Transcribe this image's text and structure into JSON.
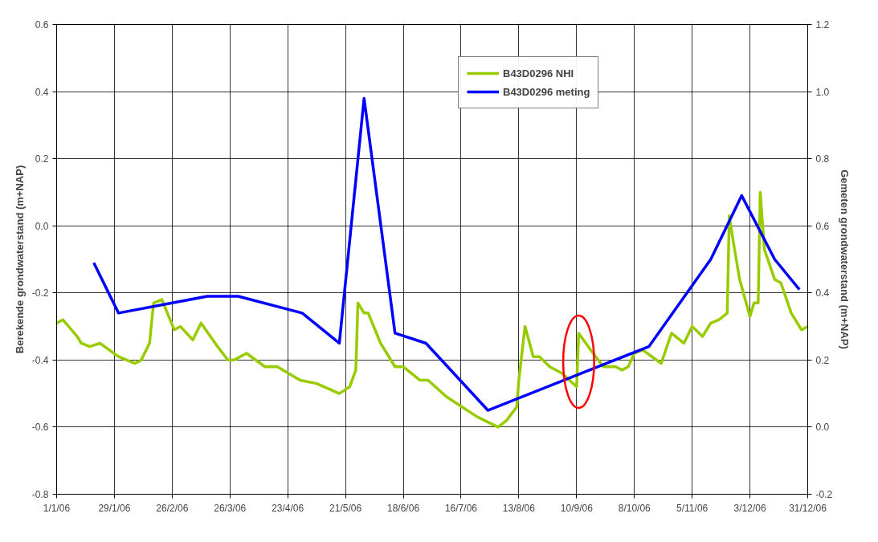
{
  "chart_data": {
    "type": "line",
    "ylabel": "Berekende grondwaterstand (m+NAP)",
    "y2label": "Gemeten grondwaterstand (m+NAP)",
    "xlim": [
      "2006-01-01",
      "2006-12-31"
    ],
    "xticks": [
      {
        "value": "2006-01-01",
        "label": "1/1/06"
      },
      {
        "value": "2006-01-29",
        "label": "29/1/06"
      },
      {
        "value": "2006-02-26",
        "label": "26/2/06"
      },
      {
        "value": "2006-03-26",
        "label": "26/3/06"
      },
      {
        "value": "2006-04-23",
        "label": "23/4/06"
      },
      {
        "value": "2006-05-21",
        "label": "21/5/06"
      },
      {
        "value": "2006-06-18",
        "label": "18/6/06"
      },
      {
        "value": "2006-07-16",
        "label": "16/7/06"
      },
      {
        "value": "2006-08-13",
        "label": "13/8/06"
      },
      {
        "value": "2006-09-10",
        "label": "10/9/06"
      },
      {
        "value": "2006-10-08",
        "label": "8/10/06"
      },
      {
        "value": "2006-11-05",
        "label": "5/11/06"
      },
      {
        "value": "2006-12-03",
        "label": "3/12/06"
      },
      {
        "value": "2006-12-31",
        "label": "31/12/06"
      }
    ],
    "ylim": [
      -0.8,
      0.6
    ],
    "yticks": [
      -0.8,
      -0.6,
      -0.4,
      -0.2,
      {
        "value": 0,
        "label": "0.0"
      },
      0.2,
      0.4,
      0.6
    ],
    "y2lim": [
      -0.2,
      1.2
    ],
    "y2ticks": [
      -0.2,
      {
        "value": 0,
        "label": "0.0"
      },
      0.2,
      0.4,
      0.6,
      0.8,
      {
        "value": 1,
        "label": "1.0"
      },
      1.2
    ],
    "grid": true,
    "legend": "top",
    "marker": "none",
    "line_style": "solid",
    "series": [
      {
        "name": "B43D0296 NHI",
        "color": "#99cc00",
        "x": [
          "2006-01-01",
          "2006-01-04",
          "2006-01-11",
          "2006-01-13",
          "2006-01-17",
          "2006-01-22",
          "2006-01-31",
          "2006-02-08",
          "2006-02-11",
          "2006-02-15",
          "2006-02-17",
          "2006-02-21",
          "2006-02-27",
          "2006-03-02",
          "2006-03-08",
          "2006-03-12",
          "2006-03-20",
          "2006-03-25",
          "2006-03-28",
          "2006-04-03",
          "2006-04-12",
          "2006-04-18",
          "2006-04-29",
          "2006-05-07",
          "2006-05-18",
          "2006-05-23",
          "2006-05-26",
          "2006-05-27",
          "2006-05-28",
          "2006-05-30",
          "2006-06-01",
          "2006-06-07",
          "2006-06-14",
          "2006-06-18",
          "2006-06-26",
          "2006-06-30",
          "2006-07-09",
          "2006-07-24",
          "2006-08-03",
          "2006-08-07",
          "2006-08-12",
          "2006-08-13",
          "2006-08-16",
          "2006-08-20",
          "2006-08-23",
          "2006-08-28",
          "2006-09-03",
          "2006-09-10",
          "2006-09-11",
          "2006-09-18",
          "2006-09-23",
          "2006-09-29",
          "2006-10-02",
          "2006-10-05",
          "2006-10-08",
          "2006-10-12",
          "2006-10-21",
          "2006-10-26",
          "2006-11-01",
          "2006-11-05",
          "2006-11-10",
          "2006-11-14",
          "2006-11-18",
          "2006-11-20",
          "2006-11-22",
          "2006-11-23",
          "2006-11-25",
          "2006-11-28",
          "2006-12-03",
          "2006-12-05",
          "2006-12-07",
          "2006-12-08",
          "2006-12-10",
          "2006-12-15",
          "2006-12-18",
          "2006-12-23",
          "2006-12-28",
          "2006-12-31"
        ],
        "values": [
          -0.29,
          -0.28,
          -0.33,
          -0.35,
          -0.36,
          -0.35,
          -0.39,
          -0.41,
          -0.4,
          -0.35,
          -0.23,
          -0.22,
          -0.31,
          -0.3,
          -0.34,
          -0.29,
          -0.36,
          -0.4,
          -0.4,
          -0.38,
          -0.42,
          -0.42,
          -0.46,
          -0.47,
          -0.5,
          -0.48,
          -0.43,
          -0.23,
          -0.24,
          -0.26,
          -0.26,
          -0.35,
          -0.42,
          -0.42,
          -0.46,
          -0.46,
          -0.51,
          -0.57,
          -0.6,
          -0.58,
          -0.54,
          -0.46,
          -0.3,
          -0.39,
          -0.39,
          -0.42,
          -0.44,
          -0.48,
          -0.32,
          -0.38,
          -0.42,
          -0.42,
          -0.43,
          -0.42,
          -0.38,
          -0.37,
          -0.41,
          -0.32,
          -0.35,
          -0.3,
          -0.33,
          -0.29,
          -0.28,
          -0.27,
          -0.26,
          0.03,
          -0.05,
          -0.16,
          -0.27,
          -0.23,
          -0.23,
          0.1,
          -0.07,
          -0.16,
          -0.17,
          -0.26,
          -0.31,
          -0.3
        ]
      },
      {
        "name": "B43D0296 meting",
        "color": "#0000ff",
        "axis": "y2",
        "x": [
          "2006-01-19",
          "2006-01-31",
          "2006-03-15",
          "2006-03-30",
          "2006-04-30",
          "2006-05-18",
          "2006-05-30",
          "2006-06-14",
          "2006-06-29",
          "2006-07-29",
          "2006-10-15",
          "2006-11-14",
          "2006-11-29",
          "2006-12-15",
          "2006-12-27"
        ],
        "values": [
          0.49,
          0.34,
          0.39,
          0.39,
          0.34,
          0.25,
          0.98,
          0.28,
          0.25,
          0.05,
          0.24,
          0.5,
          0.69,
          0.5,
          0.41
        ]
      }
    ]
  }
}
